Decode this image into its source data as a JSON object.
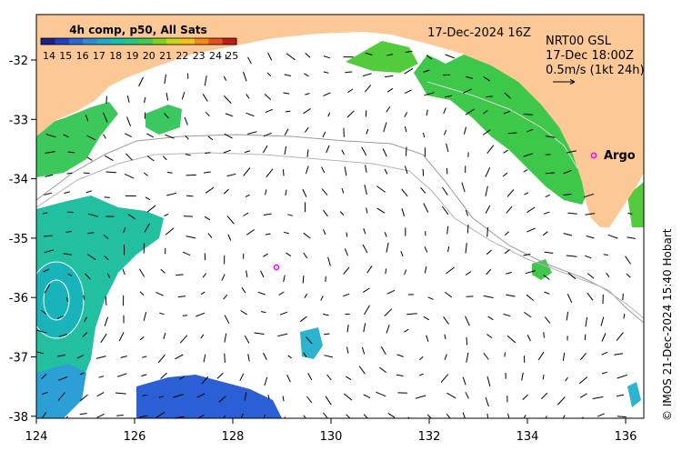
{
  "map": {
    "date_label": "17-Dec-2024 16Z",
    "product": {
      "line1": "NRT00 GSL",
      "line2": "17-Dec 18:00Z",
      "line3": "0.5m/s (1kt 24h)"
    },
    "colorbar": {
      "title": "4h comp, p50, All Sats",
      "ticks": [
        "14",
        "15",
        "16",
        "17",
        "18",
        "19",
        "20",
        "21",
        "22",
        "23",
        "24",
        "25"
      ],
      "colors": [
        "#1b1f8c",
        "#1f3fc4",
        "#2a66d8",
        "#2b8bd9",
        "#1fa9c9",
        "#12bfa8",
        "#22c785",
        "#3dcc55",
        "#7ed321",
        "#c7d61c",
        "#f0c21b",
        "#f28a1a",
        "#e4511a",
        "#c21b1b"
      ]
    },
    "x_ticks": [
      "124",
      "126",
      "128",
      "130",
      "132",
      "134",
      "136"
    ],
    "y_ticks": [
      "-32",
      "-33",
      "-34",
      "-35",
      "-36",
      "-37",
      "-38"
    ],
    "argo_label": "Argo",
    "credit": "© IMOS 21-Dec-2024 15:40 Hobart",
    "land_color": "#fcc996",
    "marker_color": "#ff00ff"
  }
}
